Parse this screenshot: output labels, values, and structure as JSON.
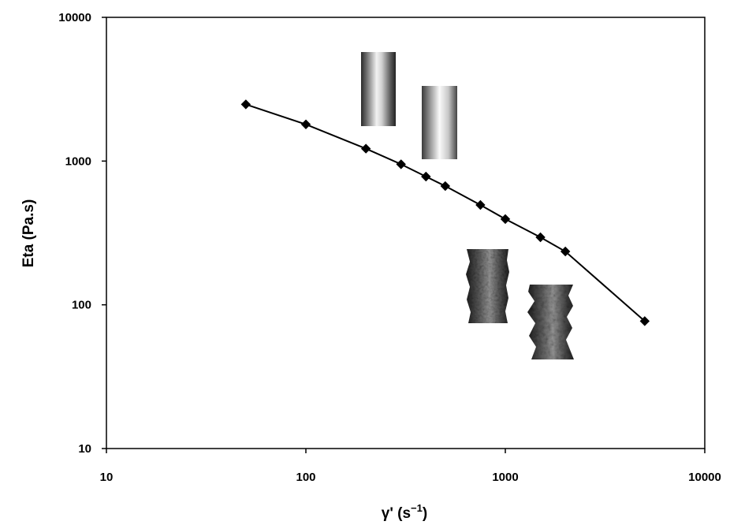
{
  "chart_data": {
    "type": "scatter",
    "x_scale": "log",
    "y_scale": "log",
    "xlim": [
      10,
      10000
    ],
    "ylim": [
      10,
      10000
    ],
    "grid": false,
    "legend": "none",
    "xlabel": {
      "main": "γ' (s",
      "sup": "−1",
      "close": ")"
    },
    "ylabel": "Eta (Pa.s)",
    "x_ticks": [
      {
        "value": 10,
        "label": "10"
      },
      {
        "value": 100,
        "label": "100"
      },
      {
        "value": 1000,
        "label": "1000"
      },
      {
        "value": 10000,
        "label": "10000"
      }
    ],
    "y_ticks": [
      {
        "value": 10,
        "label": "10"
      },
      {
        "value": 100,
        "label": "100"
      },
      {
        "value": 1000,
        "label": "1000"
      },
      {
        "value": 10000,
        "label": "10000"
      }
    ],
    "series": [
      {
        "color": "#000000",
        "marker": "diamond",
        "connected": true,
        "points": [
          {
            "x": 50,
            "y": 2480
          },
          {
            "x": 100,
            "y": 1800
          },
          {
            "x": 200,
            "y": 1220
          },
          {
            "x": 300,
            "y": 950
          },
          {
            "x": 400,
            "y": 780
          },
          {
            "x": 500,
            "y": 670
          },
          {
            "x": 750,
            "y": 495
          },
          {
            "x": 1000,
            "y": 395
          },
          {
            "x": 1500,
            "y": 295
          },
          {
            "x": 2000,
            "y": 235
          },
          {
            "x": 5000,
            "y": 77
          }
        ]
      }
    ],
    "inset_images": [
      {
        "name": "extrudate-smooth-1",
        "texture": "smooth"
      },
      {
        "name": "extrudate-smooth-2",
        "texture": "smooth"
      },
      {
        "name": "extrudate-rough-1",
        "texture": "rough"
      },
      {
        "name": "extrudate-rough-2",
        "texture": "very-rough"
      }
    ]
  }
}
